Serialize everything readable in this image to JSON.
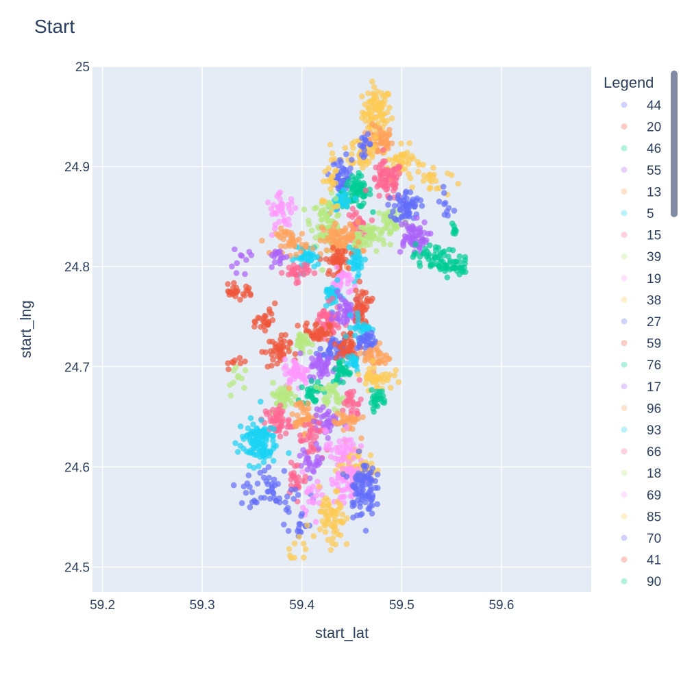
{
  "chart_data": {
    "type": "scatter",
    "title": "Start",
    "xlabel": "start_lat",
    "ylabel": "start_lng",
    "xlim": [
      59.19,
      59.69
    ],
    "ylim": [
      24.475,
      25.0
    ],
    "x_ticks": [
      "59.2",
      "59.3",
      "59.4",
      "59.5",
      "59.6"
    ],
    "y_ticks": [
      "24.5",
      "24.6",
      "24.7",
      "24.8",
      "24.9",
      "25"
    ],
    "x_tick_values": [
      59.2,
      59.3,
      59.4,
      59.5,
      59.6
    ],
    "y_tick_values": [
      24.5,
      24.6,
      24.7,
      24.8,
      24.9,
      25.0
    ],
    "grid": true,
    "plot_background": "#e5ecf6",
    "legend_title": "Legend",
    "legend_placement": "right",
    "marker_opacity": 0.7,
    "legend": [
      {
        "name": "44",
        "color": "#636efa"
      },
      {
        "name": "20",
        "color": "#ef553b"
      },
      {
        "name": "46",
        "color": "#00cc96"
      },
      {
        "name": "55",
        "color": "#ab63fa"
      },
      {
        "name": "13",
        "color": "#ffa15a"
      },
      {
        "name": "5",
        "color": "#19d3f3"
      },
      {
        "name": "15",
        "color": "#ff6692"
      },
      {
        "name": "39",
        "color": "#b6e880"
      },
      {
        "name": "19",
        "color": "#ff97ff"
      },
      {
        "name": "38",
        "color": "#fecb52"
      },
      {
        "name": "27",
        "color": "#636efa"
      },
      {
        "name": "59",
        "color": "#ef553b"
      },
      {
        "name": "76",
        "color": "#00cc96"
      },
      {
        "name": "17",
        "color": "#ab63fa"
      },
      {
        "name": "96",
        "color": "#ffa15a"
      },
      {
        "name": "93",
        "color": "#19d3f3"
      },
      {
        "name": "66",
        "color": "#ff6692"
      },
      {
        "name": "18",
        "color": "#b6e880"
      },
      {
        "name": "69",
        "color": "#ff97ff"
      },
      {
        "name": "85",
        "color": "#fecb52"
      },
      {
        "name": "70",
        "color": "#636efa"
      },
      {
        "name": "41",
        "color": "#ef553b"
      },
      {
        "name": "90",
        "color": "#00cc96"
      }
    ],
    "clusters": [
      {
        "x": 59.475,
        "y": 24.955,
        "sx": 0.009,
        "sy": 0.015,
        "n": 80,
        "color": "#fecb52"
      },
      {
        "x": 59.478,
        "y": 24.925,
        "sx": 0.008,
        "sy": 0.01,
        "n": 50,
        "color": "#ffa15a"
      },
      {
        "x": 59.46,
        "y": 24.915,
        "sx": 0.012,
        "sy": 0.012,
        "n": 40,
        "color": "#fecb52"
      },
      {
        "x": 59.5,
        "y": 24.905,
        "sx": 0.012,
        "sy": 0.01,
        "n": 45,
        "color": "#fecb52"
      },
      {
        "x": 59.53,
        "y": 24.885,
        "sx": 0.012,
        "sy": 0.01,
        "n": 20,
        "color": "#fecb52"
      },
      {
        "x": 59.44,
        "y": 24.89,
        "sx": 0.006,
        "sy": 0.012,
        "n": 45,
        "color": "#636efa"
      },
      {
        "x": 59.463,
        "y": 24.922,
        "sx": 0.004,
        "sy": 0.006,
        "n": 15,
        "color": "#636efa"
      },
      {
        "x": 59.455,
        "y": 24.875,
        "sx": 0.009,
        "sy": 0.01,
        "n": 70,
        "color": "#00cc96"
      },
      {
        "x": 59.485,
        "y": 24.885,
        "sx": 0.01,
        "sy": 0.012,
        "n": 70,
        "color": "#ff6692"
      },
      {
        "x": 59.44,
        "y": 24.865,
        "sx": 0.007,
        "sy": 0.006,
        "n": 30,
        "color": "#19d3f3"
      },
      {
        "x": 59.425,
        "y": 24.845,
        "sx": 0.01,
        "sy": 0.015,
        "n": 70,
        "color": "#b6e880"
      },
      {
        "x": 59.455,
        "y": 24.84,
        "sx": 0.006,
        "sy": 0.01,
        "n": 30,
        "color": "#ff6692"
      },
      {
        "x": 59.455,
        "y": 24.825,
        "sx": 0.008,
        "sy": 0.006,
        "n": 25,
        "color": "#b6e880"
      },
      {
        "x": 59.47,
        "y": 24.83,
        "sx": 0.008,
        "sy": 0.01,
        "n": 30,
        "color": "#b6e880"
      },
      {
        "x": 59.49,
        "y": 24.845,
        "sx": 0.01,
        "sy": 0.01,
        "n": 40,
        "color": "#b6e880"
      },
      {
        "x": 59.505,
        "y": 24.86,
        "sx": 0.008,
        "sy": 0.01,
        "n": 60,
        "color": "#636efa"
      },
      {
        "x": 59.51,
        "y": 24.83,
        "sx": 0.01,
        "sy": 0.01,
        "n": 60,
        "color": "#ab63fa"
      },
      {
        "x": 59.53,
        "y": 24.81,
        "sx": 0.012,
        "sy": 0.008,
        "n": 40,
        "color": "#00cc96"
      },
      {
        "x": 59.55,
        "y": 24.8,
        "sx": 0.012,
        "sy": 0.006,
        "n": 40,
        "color": "#00cc96"
      },
      {
        "x": 59.553,
        "y": 24.838,
        "sx": 0.003,
        "sy": 0.004,
        "n": 8,
        "color": "#00cc96"
      },
      {
        "x": 59.44,
        "y": 24.825,
        "sx": 0.012,
        "sy": 0.012,
        "n": 80,
        "color": "#ffa15a"
      },
      {
        "x": 59.435,
        "y": 24.805,
        "sx": 0.007,
        "sy": 0.008,
        "n": 40,
        "color": "#ef553b"
      },
      {
        "x": 59.455,
        "y": 24.805,
        "sx": 0.006,
        "sy": 0.008,
        "n": 30,
        "color": "#19d3f3"
      },
      {
        "x": 59.405,
        "y": 24.81,
        "sx": 0.008,
        "sy": 0.008,
        "n": 40,
        "color": "#19d3f3"
      },
      {
        "x": 59.39,
        "y": 24.825,
        "sx": 0.01,
        "sy": 0.008,
        "n": 40,
        "color": "#ffa15a"
      },
      {
        "x": 59.38,
        "y": 24.855,
        "sx": 0.01,
        "sy": 0.01,
        "n": 35,
        "color": "#ff97ff"
      },
      {
        "x": 59.375,
        "y": 24.81,
        "sx": 0.006,
        "sy": 0.006,
        "n": 15,
        "color": "#ab63fa"
      },
      {
        "x": 59.395,
        "y": 24.795,
        "sx": 0.008,
        "sy": 0.006,
        "n": 30,
        "color": "#ff6692"
      },
      {
        "x": 59.44,
        "y": 24.785,
        "sx": 0.006,
        "sy": 0.008,
        "n": 30,
        "color": "#ff97ff"
      },
      {
        "x": 59.43,
        "y": 24.77,
        "sx": 0.006,
        "sy": 0.008,
        "n": 30,
        "color": "#19d3f3"
      },
      {
        "x": 59.335,
        "y": 24.775,
        "sx": 0.01,
        "sy": 0.004,
        "n": 25,
        "color": "#ef553b"
      },
      {
        "x": 59.365,
        "y": 24.745,
        "sx": 0.006,
        "sy": 0.01,
        "n": 25,
        "color": "#ef553b"
      },
      {
        "x": 59.425,
        "y": 24.745,
        "sx": 0.008,
        "sy": 0.01,
        "n": 50,
        "color": "#ff6692"
      },
      {
        "x": 59.445,
        "y": 24.755,
        "sx": 0.008,
        "sy": 0.01,
        "n": 40,
        "color": "#ab63fa"
      },
      {
        "x": 59.46,
        "y": 24.76,
        "sx": 0.006,
        "sy": 0.012,
        "n": 40,
        "color": "#ef553b"
      },
      {
        "x": 59.415,
        "y": 24.735,
        "sx": 0.008,
        "sy": 0.006,
        "n": 40,
        "color": "#ef553b"
      },
      {
        "x": 59.4,
        "y": 24.725,
        "sx": 0.006,
        "sy": 0.006,
        "n": 30,
        "color": "#b6e880"
      },
      {
        "x": 59.375,
        "y": 24.715,
        "sx": 0.008,
        "sy": 0.01,
        "n": 40,
        "color": "#ef553b"
      },
      {
        "x": 59.43,
        "y": 24.715,
        "sx": 0.008,
        "sy": 0.008,
        "n": 40,
        "color": "#636efa"
      },
      {
        "x": 59.445,
        "y": 24.72,
        "sx": 0.008,
        "sy": 0.01,
        "n": 40,
        "color": "#ef553b"
      },
      {
        "x": 59.46,
        "y": 24.74,
        "sx": 0.006,
        "sy": 0.008,
        "n": 30,
        "color": "#19d3f3"
      },
      {
        "x": 59.465,
        "y": 24.725,
        "sx": 0.006,
        "sy": 0.006,
        "n": 30,
        "color": "#636efa"
      },
      {
        "x": 59.475,
        "y": 24.71,
        "sx": 0.008,
        "sy": 0.008,
        "n": 35,
        "color": "#ffa15a"
      },
      {
        "x": 59.45,
        "y": 24.705,
        "sx": 0.006,
        "sy": 0.006,
        "n": 20,
        "color": "#19d3f3"
      },
      {
        "x": 59.395,
        "y": 24.695,
        "sx": 0.008,
        "sy": 0.008,
        "n": 50,
        "color": "#ff97ff"
      },
      {
        "x": 59.42,
        "y": 24.7,
        "sx": 0.008,
        "sy": 0.008,
        "n": 40,
        "color": "#ab63fa"
      },
      {
        "x": 59.44,
        "y": 24.695,
        "sx": 0.006,
        "sy": 0.008,
        "n": 30,
        "color": "#00cc96"
      },
      {
        "x": 59.475,
        "y": 24.69,
        "sx": 0.01,
        "sy": 0.008,
        "n": 40,
        "color": "#fecb52"
      },
      {
        "x": 59.475,
        "y": 24.668,
        "sx": 0.006,
        "sy": 0.006,
        "n": 25,
        "color": "#00cc96"
      },
      {
        "x": 59.38,
        "y": 24.67,
        "sx": 0.008,
        "sy": 0.008,
        "n": 40,
        "color": "#b6e880"
      },
      {
        "x": 59.41,
        "y": 24.675,
        "sx": 0.006,
        "sy": 0.008,
        "n": 30,
        "color": "#00cc96"
      },
      {
        "x": 59.43,
        "y": 24.67,
        "sx": 0.008,
        "sy": 0.008,
        "n": 30,
        "color": "#b6e880"
      },
      {
        "x": 59.45,
        "y": 24.665,
        "sx": 0.006,
        "sy": 0.01,
        "n": 25,
        "color": "#ff6692"
      },
      {
        "x": 59.375,
        "y": 24.645,
        "sx": 0.008,
        "sy": 0.01,
        "n": 50,
        "color": "#ff6692"
      },
      {
        "x": 59.4,
        "y": 24.65,
        "sx": 0.008,
        "sy": 0.01,
        "n": 40,
        "color": "#ffa15a"
      },
      {
        "x": 59.425,
        "y": 24.645,
        "sx": 0.008,
        "sy": 0.008,
        "n": 35,
        "color": "#ab63fa"
      },
      {
        "x": 59.445,
        "y": 24.645,
        "sx": 0.008,
        "sy": 0.008,
        "n": 30,
        "color": "#ffa15a"
      },
      {
        "x": 59.355,
        "y": 24.625,
        "sx": 0.012,
        "sy": 0.014,
        "n": 110,
        "color": "#19d3f3"
      },
      {
        "x": 59.41,
        "y": 24.625,
        "sx": 0.008,
        "sy": 0.012,
        "n": 30,
        "color": "#ff6692"
      },
      {
        "x": 59.44,
        "y": 24.62,
        "sx": 0.01,
        "sy": 0.01,
        "n": 30,
        "color": "#ff97ff"
      },
      {
        "x": 59.455,
        "y": 24.6,
        "sx": 0.012,
        "sy": 0.01,
        "n": 60,
        "color": "#fecb52"
      },
      {
        "x": 59.41,
        "y": 24.605,
        "sx": 0.008,
        "sy": 0.01,
        "n": 25,
        "color": "#ab63fa"
      },
      {
        "x": 59.395,
        "y": 24.59,
        "sx": 0.006,
        "sy": 0.01,
        "n": 25,
        "color": "#ff6692"
      },
      {
        "x": 59.445,
        "y": 24.59,
        "sx": 0.01,
        "sy": 0.018,
        "n": 60,
        "color": "#ff97ff"
      },
      {
        "x": 59.46,
        "y": 24.58,
        "sx": 0.008,
        "sy": 0.018,
        "n": 90,
        "color": "#636efa"
      },
      {
        "x": 59.37,
        "y": 24.575,
        "sx": 0.02,
        "sy": 0.015,
        "n": 50,
        "color": "#636efa"
      },
      {
        "x": 59.41,
        "y": 24.575,
        "sx": 0.008,
        "sy": 0.012,
        "n": 20,
        "color": "#ff97ff"
      },
      {
        "x": 59.43,
        "y": 24.545,
        "sx": 0.008,
        "sy": 0.02,
        "n": 60,
        "color": "#fecb52"
      },
      {
        "x": 59.395,
        "y": 24.54,
        "sx": 0.01,
        "sy": 0.01,
        "n": 15,
        "color": "#636efa"
      },
      {
        "x": 59.335,
        "y": 24.69,
        "sx": 0.006,
        "sy": 0.01,
        "n": 10,
        "color": "#b6e880"
      },
      {
        "x": 59.335,
        "y": 24.705,
        "sx": 0.008,
        "sy": 0.004,
        "n": 8,
        "color": "#ef553b"
      },
      {
        "x": 59.34,
        "y": 24.81,
        "sx": 0.01,
        "sy": 0.008,
        "n": 10,
        "color": "#ab63fa"
      },
      {
        "x": 59.4,
        "y": 24.52,
        "sx": 0.008,
        "sy": 0.01,
        "n": 10,
        "color": "#fecb52"
      },
      {
        "x": 59.43,
        "y": 24.88,
        "sx": 0.006,
        "sy": 0.02,
        "n": 25,
        "color": "#fecb52"
      },
      {
        "x": 59.545,
        "y": 24.86,
        "sx": 0.006,
        "sy": 0.01,
        "n": 10,
        "color": "#636efa"
      }
    ]
  }
}
